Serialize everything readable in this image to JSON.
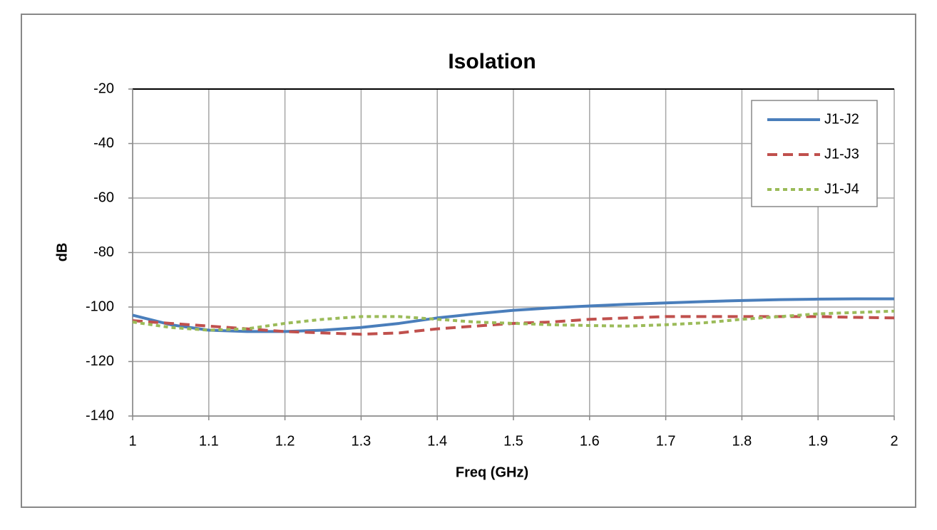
{
  "chart_data": {
    "type": "line",
    "title": "Isolation",
    "x_label": "Freq (GHz)",
    "y_label": "dB",
    "x": [
      1.0,
      1.05,
      1.1,
      1.15,
      1.2,
      1.25,
      1.3,
      1.35,
      1.4,
      1.45,
      1.5,
      1.55,
      1.6,
      1.65,
      1.7,
      1.75,
      1.8,
      1.85,
      1.9,
      1.95,
      2.0
    ],
    "series": [
      {
        "name": "J1-J2",
        "color": "#4a7ebb",
        "style": "solid",
        "values": [
          -103,
          -106.5,
          -108.5,
          -109,
          -109,
          -108.5,
          -107.5,
          -106,
          -104,
          -102.5,
          -101.2,
          -100.3,
          -99.6,
          -99,
          -98.5,
          -98,
          -97.6,
          -97.3,
          -97.1,
          -97,
          -97
        ]
      },
      {
        "name": "J1-J3",
        "color": "#c0504d",
        "style": "dashed",
        "values": [
          -105,
          -106,
          -107,
          -108,
          -109,
          -109.5,
          -110,
          -109.5,
          -108,
          -107,
          -106,
          -105.5,
          -104.5,
          -104,
          -103.5,
          -103.5,
          -103.5,
          -103.5,
          -103.5,
          -103.8,
          -104
        ]
      },
      {
        "name": "J1-J4",
        "color": "#9bbb59",
        "style": "dotted",
        "values": [
          -105.5,
          -107.5,
          -108.5,
          -108,
          -106,
          -104.5,
          -103.5,
          -103.5,
          -104.5,
          -105.5,
          -106,
          -106.5,
          -106.8,
          -107,
          -106.5,
          -105.8,
          -104.5,
          -103.5,
          -102.5,
          -102,
          -101.5
        ]
      }
    ],
    "xlim": [
      1,
      2
    ],
    "xticks": [
      1,
      1.1,
      1.2,
      1.3,
      1.4,
      1.5,
      1.6,
      1.7,
      1.8,
      1.9,
      2
    ],
    "ylim": [
      -140,
      -20
    ],
    "yticks": [
      -140,
      -120,
      -100,
      -80,
      -60,
      -40,
      -20
    ],
    "grid": true,
    "legend": "top-right"
  }
}
